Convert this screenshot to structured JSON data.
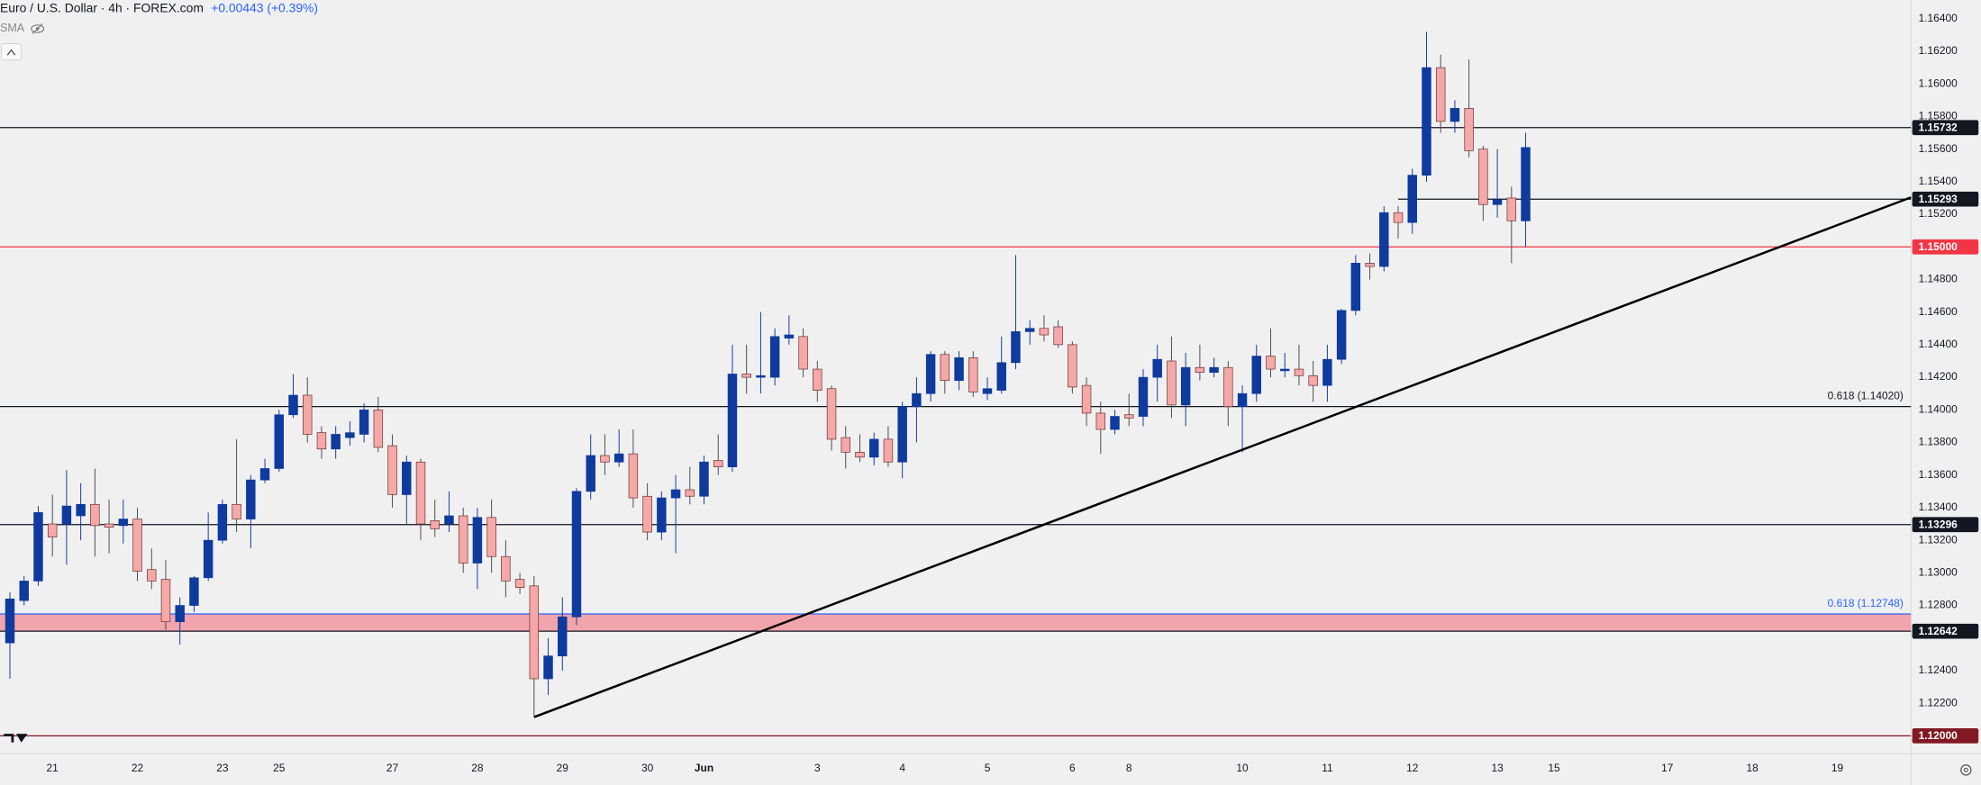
{
  "chart_data": {
    "type": "candlestick",
    "title": "Euro / U.S. Dollar · 4h · FOREX.com",
    "change": "+0.00443 (+0.39%)",
    "indicator": "SMA",
    "up_color": "#0f3a9e",
    "down_color": "#f5a8a8",
    "open": [
      1.1257,
      1.1283,
      1.1295,
      1.133,
      1.133,
      1.1335,
      1.1342,
      1.133,
      1.1329,
      1.1333,
      1.1302,
      1.1296,
      1.127,
      1.128,
      1.1297,
      1.132,
      1.1342,
      1.1333,
      1.1357,
      1.1364,
      1.1397,
      1.1409,
      1.1386,
      1.1376,
      1.1383,
      1.1385,
      1.14,
      1.1378,
      1.1348,
      1.1368,
      1.1332,
      1.133,
      1.1335,
      1.1306,
      1.1334,
      1.131,
      1.1296,
      1.1292,
      1.1235,
      1.1249,
      1.1273,
      1.135,
      1.1372,
      1.1368,
      1.1373,
      1.1347,
      1.1325,
      1.1346,
      1.1351,
      1.1347,
      1.1369,
      1.1365,
      1.1422,
      1.142,
      1.142,
      1.1444,
      1.1445,
      1.1425,
      1.1413,
      1.1383,
      1.1374,
      1.1371,
      1.1382,
      1.1368,
      1.1402,
      1.141,
      1.1434,
      1.1418,
      1.1432,
      1.141,
      1.1412,
      1.1429,
      1.1448,
      1.145,
      1.1451,
      1.144,
      1.1415,
      1.1398,
      1.1388,
      1.1397,
      1.1396,
      1.142,
      1.143,
      1.1403,
      1.1426,
      1.1423,
      1.1426,
      1.1402,
      1.141,
      1.1433,
      1.1424,
      1.1425,
      1.1421,
      1.1415,
      1.1431,
      1.1461,
      1.149,
      1.1488,
      1.1521,
      1.1515,
      1.1544,
      1.161,
      1.1577,
      1.1585,
      1.156,
      1.1526,
      1.153,
      1.1516
    ],
    "high": [
      1.1288,
      1.1298,
      1.1341,
      1.1348,
      1.1363,
      1.1355,
      1.1364,
      1.1345,
      1.1345,
      1.134,
      1.1315,
      1.1308,
      1.1285,
      1.1298,
      1.1337,
      1.1345,
      1.1382,
      1.136,
      1.137,
      1.14,
      1.1422,
      1.142,
      1.139,
      1.139,
      1.1393,
      1.1404,
      1.1408,
      1.1385,
      1.1372,
      1.137,
      1.1345,
      1.135,
      1.134,
      1.134,
      1.1345,
      1.132,
      1.13,
      1.1298,
      1.126,
      1.1285,
      1.1352,
      1.1385,
      1.1385,
      1.1388,
      1.1388,
      1.1355,
      1.135,
      1.136,
      1.1365,
      1.1372,
      1.1385,
      1.144,
      1.144,
      1.146,
      1.145,
      1.1458,
      1.145,
      1.143,
      1.1415,
      1.139,
      1.1385,
      1.1386,
      1.139,
      1.1405,
      1.142,
      1.1436,
      1.1436,
      1.1436,
      1.1436,
      1.142,
      1.1445,
      1.1495,
      1.1455,
      1.1458,
      1.1455,
      1.1442,
      1.142,
      1.1405,
      1.14,
      1.141,
      1.1425,
      1.144,
      1.1445,
      1.1435,
      1.144,
      1.1432,
      1.143,
      1.1415,
      1.144,
      1.145,
      1.1435,
      1.144,
      1.143,
      1.144,
      1.1462,
      1.1495,
      1.1496,
      1.1525,
      1.1525,
      1.1548,
      1.1632,
      1.1618,
      1.159,
      1.1615,
      1.1562,
      1.156,
      1.1537,
      1.157
    ],
    "low": [
      1.1235,
      1.128,
      1.1292,
      1.131,
      1.1305,
      1.132,
      1.131,
      1.1312,
      1.1318,
      1.1295,
      1.129,
      1.1265,
      1.1256,
      1.1276,
      1.1295,
      1.1318,
      1.1325,
      1.1315,
      1.1355,
      1.1362,
      1.1395,
      1.138,
      1.137,
      1.137,
      1.1378,
      1.138,
      1.1374,
      1.134,
      1.133,
      1.132,
      1.1322,
      1.1325,
      1.13,
      1.129,
      1.13,
      1.1285,
      1.1287,
      1.12115,
      1.1225,
      1.124,
      1.1268,
      1.1345,
      1.136,
      1.1365,
      1.134,
      1.132,
      1.132,
      1.1312,
      1.1342,
      1.1342,
      1.136,
      1.1362,
      1.141,
      1.141,
      1.1415,
      1.144,
      1.142,
      1.1405,
      1.1375,
      1.1364,
      1.1368,
      1.1366,
      1.1365,
      1.1358,
      1.138,
      1.1405,
      1.141,
      1.1412,
      1.1408,
      1.1406,
      1.141,
      1.1425,
      1.144,
      1.1442,
      1.1438,
      1.141,
      1.139,
      1.1373,
      1.1385,
      1.139,
      1.139,
      1.1405,
      1.1395,
      1.139,
      1.1418,
      1.142,
      1.139,
      1.1374,
      1.1405,
      1.142,
      1.142,
      1.1415,
      1.1405,
      1.1405,
      1.1428,
      1.1458,
      1.148,
      1.1485,
      1.1505,
      1.1508,
      1.154,
      1.157,
      1.157,
      1.1555,
      1.1516,
      1.1518,
      1.149,
      1.15
    ],
    "close": [
      1.1284,
      1.1295,
      1.1337,
      1.1322,
      1.1341,
      1.1342,
      1.1329,
      1.1328,
      1.1333,
      1.1301,
      1.1295,
      1.127,
      1.128,
      1.1297,
      1.132,
      1.1342,
      1.1333,
      1.1357,
      1.1364,
      1.1397,
      1.1409,
      1.1385,
      1.1376,
      1.1385,
      1.1386,
      1.14,
      1.1377,
      1.1348,
      1.1368,
      1.133,
      1.1327,
      1.1335,
      1.1306,
      1.1334,
      1.131,
      1.1295,
      1.1291,
      1.1235,
      1.1249,
      1.1273,
      1.135,
      1.1372,
      1.1368,
      1.1373,
      1.1346,
      1.1325,
      1.1346,
      1.1351,
      1.1347,
      1.1368,
      1.1365,
      1.1422,
      1.142,
      1.1421,
      1.1445,
      1.1446,
      1.1425,
      1.1412,
      1.1382,
      1.1374,
      1.1371,
      1.1382,
      1.1368,
      1.1402,
      1.141,
      1.1434,
      1.1418,
      1.1432,
      1.1411,
      1.1413,
      1.1429,
      1.1448,
      1.145,
      1.1446,
      1.144,
      1.1414,
      1.1398,
      1.1388,
      1.1396,
      1.1395,
      1.142,
      1.1431,
      1.1403,
      1.1426,
      1.1423,
      1.1426,
      1.1402,
      1.141,
      1.1433,
      1.1425,
      1.1425,
      1.1421,
      1.1415,
      1.1431,
      1.1461,
      1.149,
      1.1488,
      1.1521,
      1.1515,
      1.1544,
      1.161,
      1.1577,
      1.1585,
      1.1559,
      1.1526,
      1.1529,
      1.1516,
      1.1561
    ],
    "xlim": [
      -0.7,
      134.2
    ],
    "ylim": [
      1.1189,
      1.16515
    ],
    "xticks": [
      {
        "value": 3,
        "label": "21"
      },
      {
        "value": 9,
        "label": "22"
      },
      {
        "value": 15,
        "label": "23"
      },
      {
        "value": 19,
        "label": "25"
      },
      {
        "value": 27,
        "label": "27"
      },
      {
        "value": 33,
        "label": "28"
      },
      {
        "value": 39,
        "label": "29"
      },
      {
        "value": 45,
        "label": "30"
      },
      {
        "value": 49,
        "label": "Jun"
      },
      {
        "value": 57,
        "label": "3"
      },
      {
        "value": 63,
        "label": "4"
      },
      {
        "value": 69,
        "label": "5"
      },
      {
        "value": 75,
        "label": "6"
      },
      {
        "value": 79,
        "label": "8"
      },
      {
        "value": 87,
        "label": "10"
      },
      {
        "value": 93,
        "label": "11"
      },
      {
        "value": 99,
        "label": "12"
      },
      {
        "value": 105,
        "label": "13"
      },
      {
        "value": 109,
        "label": "15"
      },
      {
        "value": 117,
        "label": "17"
      },
      {
        "value": 123,
        "label": "18"
      },
      {
        "value": 129,
        "label": "19"
      }
    ],
    "yticks": [
      {
        "value": 1.122,
        "label": "1.12200"
      },
      {
        "value": 1.124,
        "label": "1.12400"
      },
      {
        "value": 1.128,
        "label": "1.12800"
      },
      {
        "value": 1.13,
        "label": "1.13000"
      },
      {
        "value": 1.132,
        "label": "1.13200"
      },
      {
        "value": 1.134,
        "label": "1.13400"
      },
      {
        "value": 1.136,
        "label": "1.13600"
      },
      {
        "value": 1.138,
        "label": "1.13800"
      },
      {
        "value": 1.14,
        "label": "1.14000"
      },
      {
        "value": 1.142,
        "label": "1.14200"
      },
      {
        "value": 1.144,
        "label": "1.14400"
      },
      {
        "value": 1.146,
        "label": "1.14600"
      },
      {
        "value": 1.148,
        "label": "1.14800"
      },
      {
        "value": 1.152,
        "label": "1.15200"
      },
      {
        "value": 1.154,
        "label": "1.15400"
      },
      {
        "value": 1.156,
        "label": "1.15600"
      },
      {
        "value": 1.158,
        "label": "1.15800"
      },
      {
        "value": 1.16,
        "label": "1.16000"
      },
      {
        "value": 1.162,
        "label": "1.16200"
      },
      {
        "value": 1.164,
        "label": "1.16400"
      }
    ],
    "levels": [
      {
        "value": 1.15732,
        "label": "1.15732",
        "color": "#131722"
      },
      {
        "value": 1.15293,
        "label": "1.15293",
        "color": "#131722",
        "start": 98
      },
      {
        "value": 1.15,
        "label": "1.15000",
        "color": "#f23645"
      },
      {
        "value": 1.1402,
        "annotation": "0.618 (1.14020)",
        "color": "#131722"
      },
      {
        "value": 1.13296,
        "label": "1.13296",
        "color": "#131722"
      },
      {
        "value": 1.12748,
        "annotation": "0.618 (1.12748)",
        "color": "#2962ff",
        "band_color": "#f2a4ac"
      },
      {
        "value": 1.12642,
        "label": "1.12642",
        "color": "#131722"
      },
      {
        "value": 1.12,
        "label": "1.12000",
        "color": "#801922"
      }
    ],
    "trendline": {
      "x": [
        37,
        134.2
      ],
      "y": [
        1.12115,
        1.15304
      ],
      "color": "#000000"
    }
  }
}
